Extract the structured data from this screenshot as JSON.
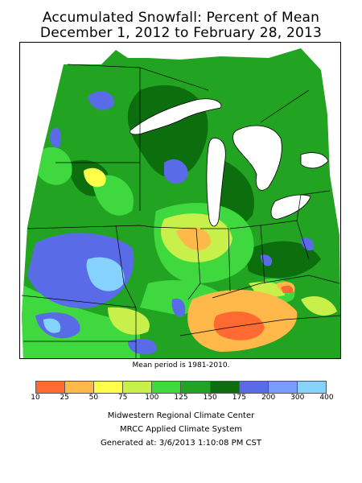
{
  "header": {
    "title": "Accumulated Snowfall: Percent of Mean",
    "subtitle": "December 1, 2012 to February 28, 2013"
  },
  "map": {
    "note": "Mean period is 1981-2010.",
    "water_color": "#ffffff",
    "border_color": "#000000"
  },
  "legend": {
    "ticks": [
      "10",
      "25",
      "50",
      "75",
      "100",
      "125",
      "150",
      "175",
      "200",
      "300",
      "400"
    ],
    "colors": [
      "#ff6a33",
      "#ffb84a",
      "#ffff4a",
      "#c8f04a",
      "#3fd93f",
      "#22a322",
      "#0d6e0d",
      "#5a6be8",
      "#7a9cff",
      "#86d2ff",
      "#d6b6ff"
    ]
  },
  "footer": {
    "line1": "Midwestern Regional Climate Center",
    "line2": "MRCC Applied Climate System",
    "line3": "Generated at: 3/6/2013 1:10:08 PM CST"
  }
}
